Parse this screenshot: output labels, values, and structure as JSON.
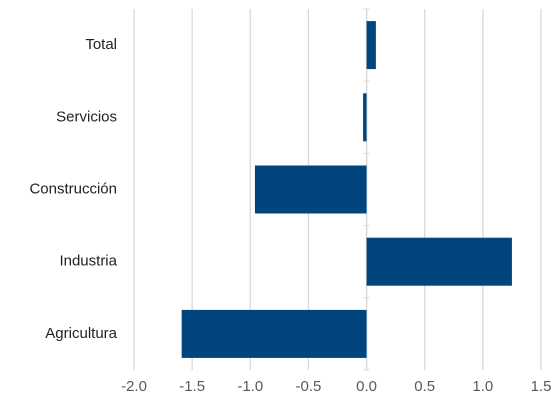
{
  "chart_data": {
    "type": "hbar",
    "categories": [
      "Total",
      "Servicios",
      "Construcción",
      "Industria",
      "Agricultura"
    ],
    "values": [
      0.08,
      -0.03,
      -0.96,
      1.25,
      -1.59
    ],
    "color": "#00457e",
    "xlim": [
      -2.0,
      1.5
    ],
    "xticks": [
      {
        "value": -2.0,
        "label": "-2.0"
      },
      -1.5,
      {
        "value": -1.0,
        "label": "-1.0"
      },
      -0.5,
      {
        "value": 0.0,
        "label": "0.0"
      },
      0.5,
      {
        "value": 1.0,
        "label": "1.0"
      },
      1.5
    ],
    "grid": true
  }
}
